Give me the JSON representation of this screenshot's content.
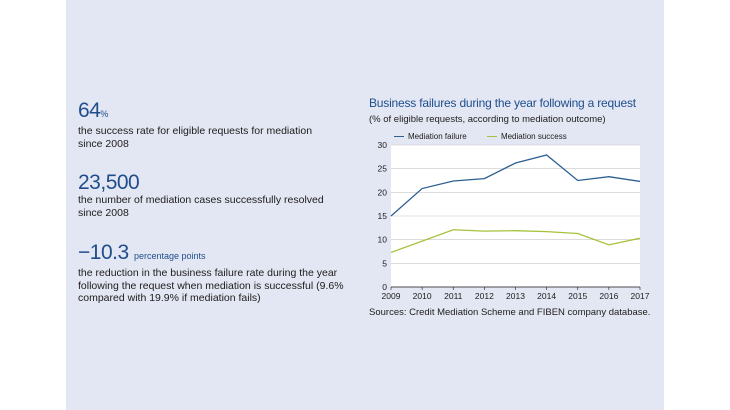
{
  "stats": [
    {
      "value": "64",
      "unit": "%",
      "desc": "the success rate for eligible requests for mediation since 2008"
    },
    {
      "value": "23,500",
      "unit": "",
      "desc": "the number of mediation cases successfully resolved since 2008"
    },
    {
      "value": "−10.3",
      "unit": "percentage points",
      "desc": "the reduction in the business failure rate during the year following the request when mediation is successful (9.6% compared with 19.9% if mediation fails)"
    }
  ],
  "chart_data": {
    "type": "line",
    "title": "Business failures during the year following a request",
    "subtitle": "(% of eligible requests, according to mediation outcome)",
    "x": [
      "2009",
      "2010",
      "2011",
      "2012",
      "2013",
      "2014",
      "2015",
      "2016",
      "2017"
    ],
    "series": [
      {
        "name": "Mediation failure",
        "color": "#2e5f91",
        "values": [
          15,
          20.8,
          22.4,
          22.9,
          26.2,
          27.9,
          22.5,
          23.3,
          22.3
        ]
      },
      {
        "name": "Mediation success",
        "color": "#a6c23a",
        "values": [
          7.3,
          9.7,
          12.1,
          11.8,
          11.9,
          11.7,
          11.3,
          8.9,
          10.3
        ]
      }
    ],
    "ylim": [
      0,
      30
    ],
    "yticks": [
      "0",
      "5",
      "10",
      "15",
      "20",
      "25",
      "30"
    ],
    "grid": true,
    "legend_position": "top-left"
  },
  "source": "Sources: Credit Mediation Scheme and FIBEN company database."
}
